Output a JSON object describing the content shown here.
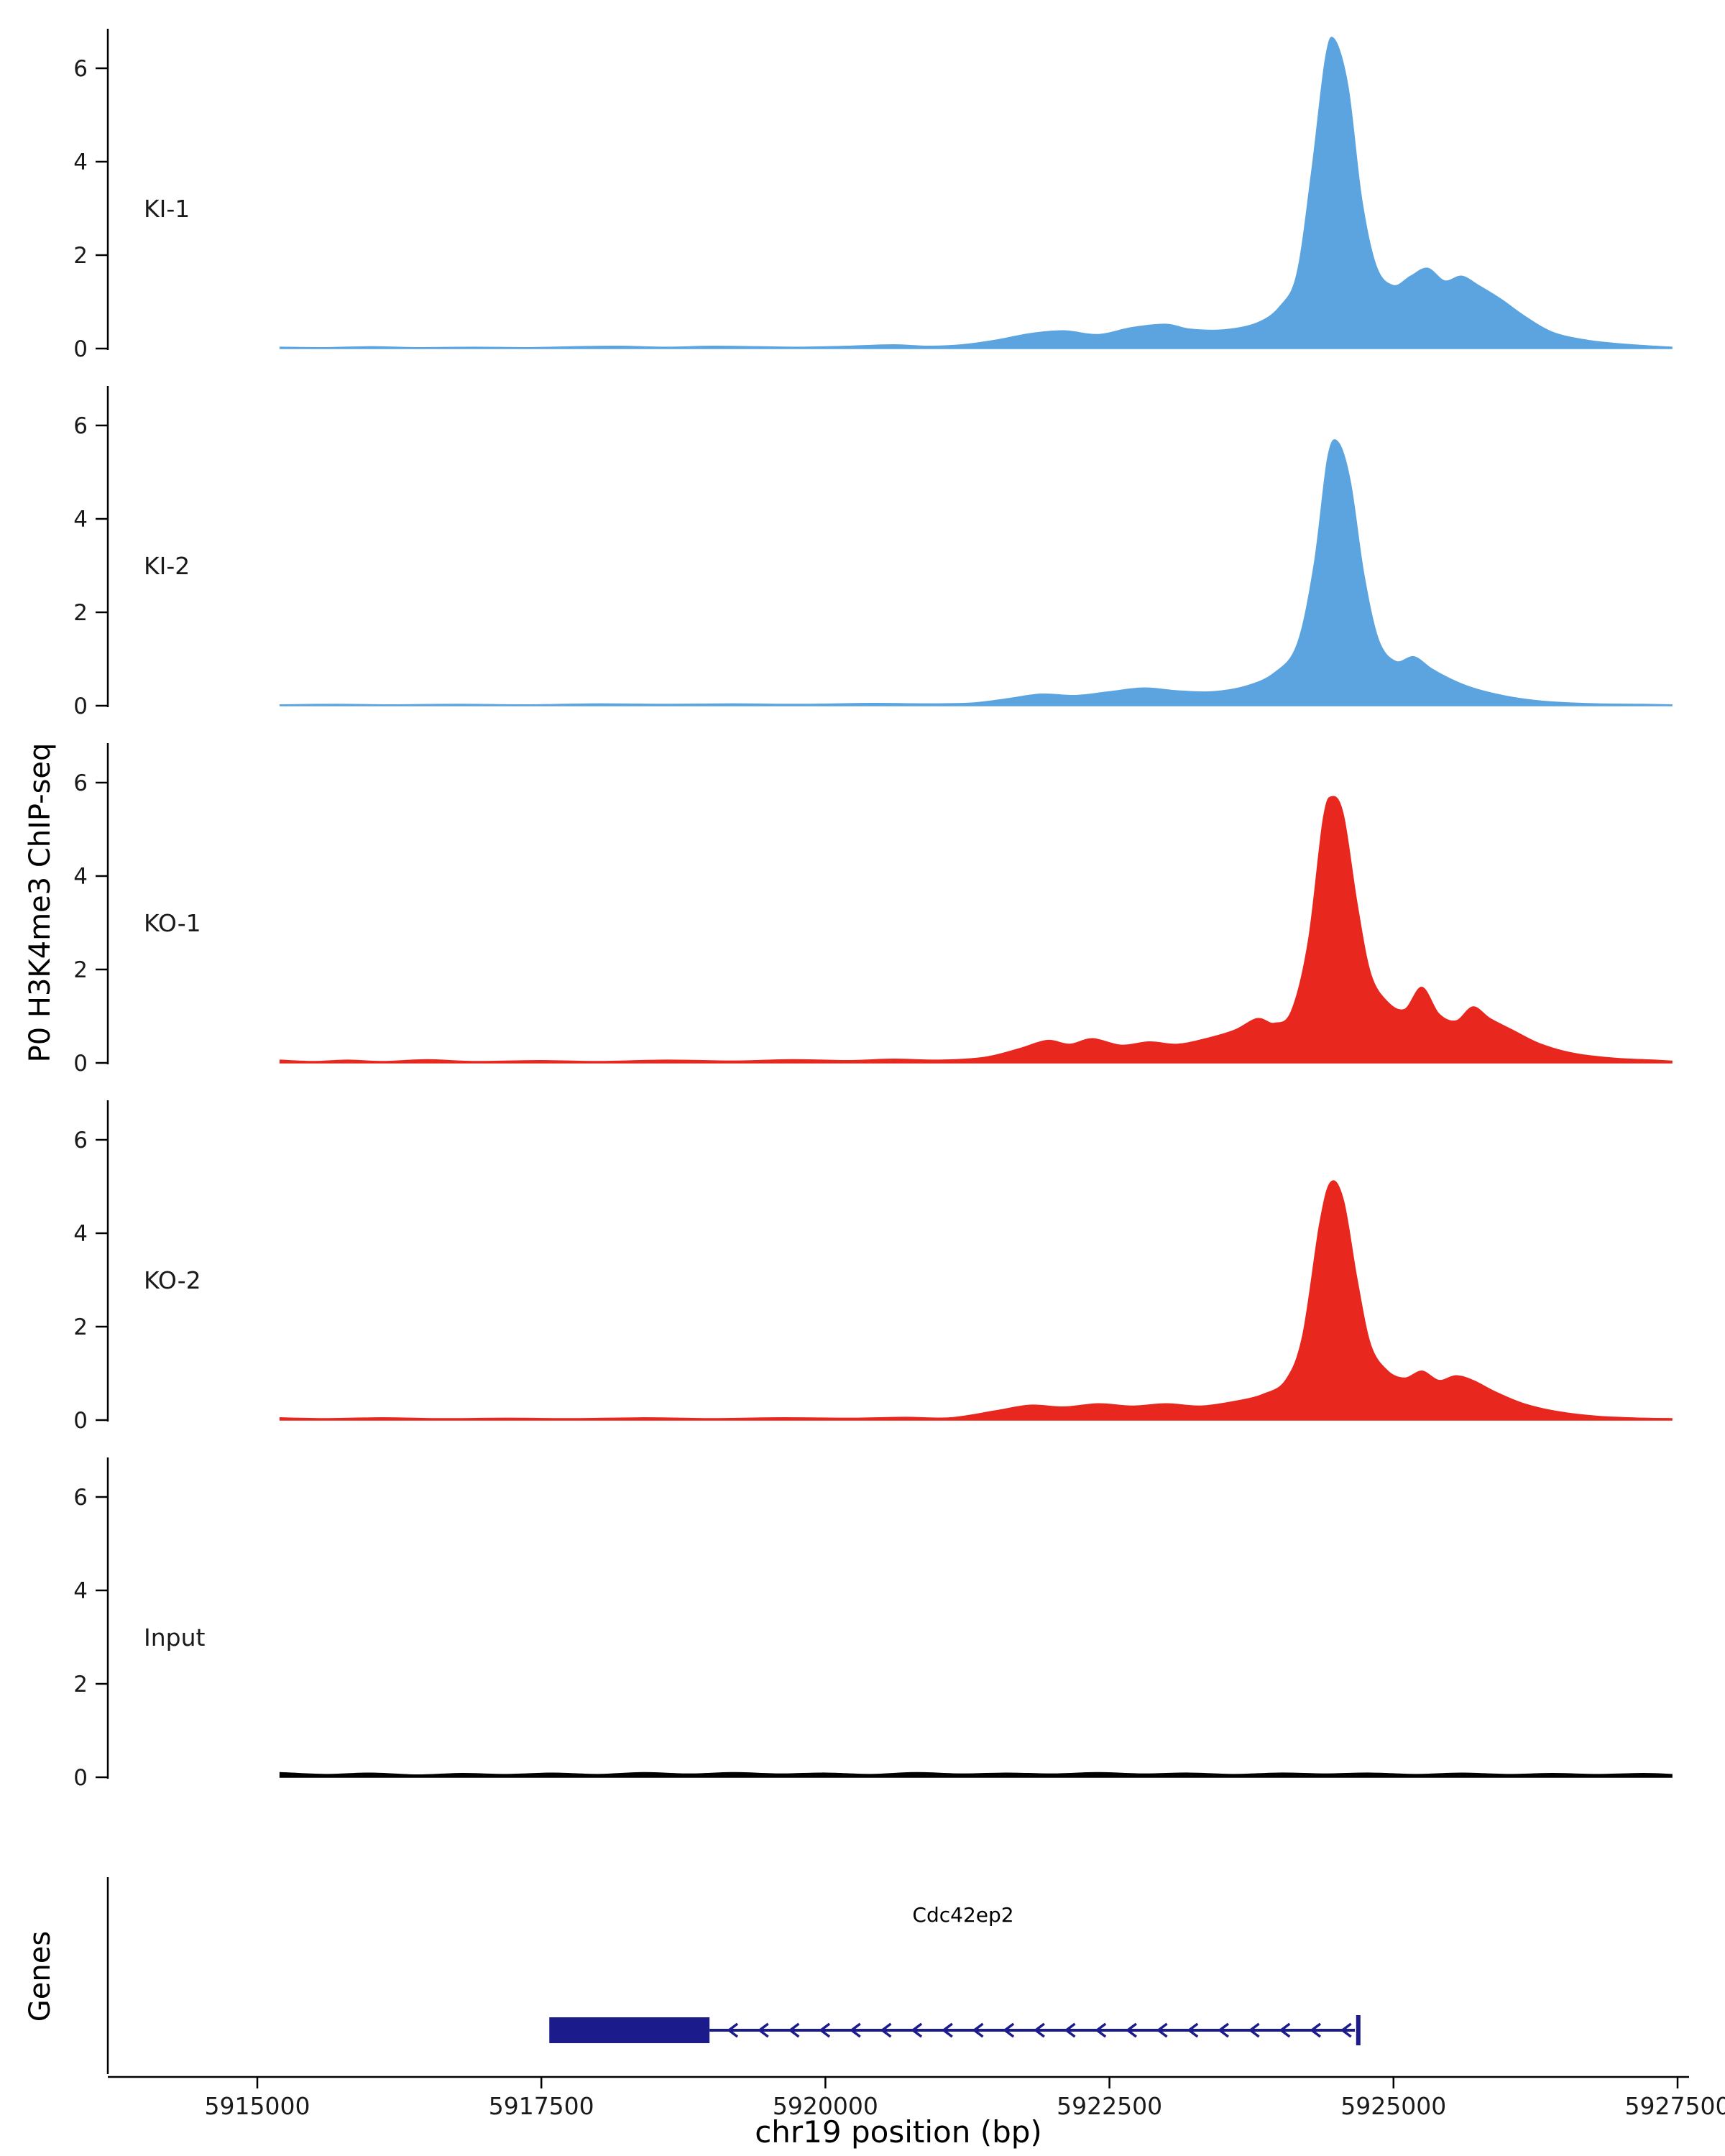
{
  "figure": {
    "y_axis_label": "P0 H3K4me3 ChIP-seq",
    "x_axis_label": "chr19 position (bp)",
    "genes_label": "Genes"
  },
  "chart_data": {
    "type": "area",
    "title": "",
    "x_unit": "bp",
    "chromosome": "chr19",
    "xlim": [
      5913650,
      5928100
    ],
    "x_ticks": [
      5915000,
      5917500,
      5920000,
      5922500,
      5925000,
      5927500
    ],
    "y_ticks": [
      0,
      2,
      4,
      6
    ],
    "ylim": [
      0,
      6.8
    ],
    "grid": "off",
    "tracks": [
      {
        "name": "KI-1",
        "color": "#5BA4E0",
        "points": [
          [
            5915200,
            0.03
          ],
          [
            5915600,
            0.02
          ],
          [
            5916000,
            0.04
          ],
          [
            5916400,
            0.02
          ],
          [
            5916900,
            0.03
          ],
          [
            5917400,
            0.02
          ],
          [
            5917800,
            0.04
          ],
          [
            5918200,
            0.05
          ],
          [
            5918600,
            0.03
          ],
          [
            5919000,
            0.05
          ],
          [
            5919400,
            0.04
          ],
          [
            5919800,
            0.03
          ],
          [
            5920200,
            0.05
          ],
          [
            5920600,
            0.08
          ],
          [
            5920900,
            0.05
          ],
          [
            5921200,
            0.08
          ],
          [
            5921500,
            0.18
          ],
          [
            5921800,
            0.32
          ],
          [
            5922100,
            0.38
          ],
          [
            5922400,
            0.3
          ],
          [
            5922700,
            0.45
          ],
          [
            5923000,
            0.52
          ],
          [
            5923200,
            0.42
          ],
          [
            5923500,
            0.4
          ],
          [
            5923800,
            0.55
          ],
          [
            5924000,
            0.9
          ],
          [
            5924150,
            1.6
          ],
          [
            5924280,
            3.8
          ],
          [
            5924400,
            6.2
          ],
          [
            5924480,
            6.62
          ],
          [
            5924600,
            5.6
          ],
          [
            5924720,
            3.2
          ],
          [
            5924850,
            1.75
          ],
          [
            5925000,
            1.35
          ],
          [
            5925150,
            1.55
          ],
          [
            5925300,
            1.72
          ],
          [
            5925450,
            1.45
          ],
          [
            5925600,
            1.55
          ],
          [
            5925750,
            1.35
          ],
          [
            5925950,
            1.05
          ],
          [
            5926150,
            0.7
          ],
          [
            5926400,
            0.35
          ],
          [
            5926700,
            0.18
          ],
          [
            5927000,
            0.1
          ],
          [
            5927300,
            0.05
          ],
          [
            5927450,
            0.03
          ]
        ]
      },
      {
        "name": "KI-2",
        "color": "#5BA4E0",
        "points": [
          [
            5915200,
            0.02
          ],
          [
            5915700,
            0.03
          ],
          [
            5916200,
            0.02
          ],
          [
            5916800,
            0.03
          ],
          [
            5917400,
            0.02
          ],
          [
            5918000,
            0.04
          ],
          [
            5918600,
            0.03
          ],
          [
            5919200,
            0.04
          ],
          [
            5919800,
            0.03
          ],
          [
            5920400,
            0.05
          ],
          [
            5920900,
            0.04
          ],
          [
            5921300,
            0.06
          ],
          [
            5921600,
            0.15
          ],
          [
            5921900,
            0.25
          ],
          [
            5922200,
            0.22
          ],
          [
            5922500,
            0.3
          ],
          [
            5922800,
            0.38
          ],
          [
            5923100,
            0.32
          ],
          [
            5923400,
            0.3
          ],
          [
            5923700,
            0.42
          ],
          [
            5923950,
            0.7
          ],
          [
            5924150,
            1.3
          ],
          [
            5924300,
            3.0
          ],
          [
            5924420,
            5.3
          ],
          [
            5924510,
            5.65
          ],
          [
            5924620,
            4.8
          ],
          [
            5924740,
            2.8
          ],
          [
            5924870,
            1.4
          ],
          [
            5925020,
            0.95
          ],
          [
            5925180,
            1.05
          ],
          [
            5925330,
            0.8
          ],
          [
            5925480,
            0.6
          ],
          [
            5925650,
            0.42
          ],
          [
            5925850,
            0.28
          ],
          [
            5926100,
            0.16
          ],
          [
            5926400,
            0.08
          ],
          [
            5926800,
            0.04
          ],
          [
            5927200,
            0.03
          ],
          [
            5927450,
            0.02
          ]
        ]
      },
      {
        "name": "KO-1",
        "color": "#E8271E",
        "points": [
          [
            5915200,
            0.06
          ],
          [
            5915500,
            0.03
          ],
          [
            5915800,
            0.06
          ],
          [
            5916100,
            0.03
          ],
          [
            5916500,
            0.07
          ],
          [
            5916900,
            0.03
          ],
          [
            5917500,
            0.05
          ],
          [
            5918000,
            0.03
          ],
          [
            5918600,
            0.06
          ],
          [
            5919200,
            0.04
          ],
          [
            5919700,
            0.07
          ],
          [
            5920200,
            0.05
          ],
          [
            5920600,
            0.08
          ],
          [
            5921000,
            0.06
          ],
          [
            5921400,
            0.12
          ],
          [
            5921700,
            0.3
          ],
          [
            5921950,
            0.48
          ],
          [
            5922150,
            0.4
          ],
          [
            5922350,
            0.52
          ],
          [
            5922600,
            0.38
          ],
          [
            5922850,
            0.45
          ],
          [
            5923100,
            0.4
          ],
          [
            5923350,
            0.52
          ],
          [
            5923600,
            0.7
          ],
          [
            5923800,
            0.95
          ],
          [
            5923950,
            0.85
          ],
          [
            5924100,
            1.1
          ],
          [
            5924250,
            2.6
          ],
          [
            5924380,
            5.2
          ],
          [
            5924460,
            5.7
          ],
          [
            5924560,
            5.3
          ],
          [
            5924680,
            3.4
          ],
          [
            5924800,
            1.9
          ],
          [
            5924950,
            1.3
          ],
          [
            5925100,
            1.15
          ],
          [
            5925250,
            1.62
          ],
          [
            5925400,
            1.05
          ],
          [
            5925550,
            0.9
          ],
          [
            5925700,
            1.2
          ],
          [
            5925850,
            0.95
          ],
          [
            5926050,
            0.7
          ],
          [
            5926300,
            0.4
          ],
          [
            5926600,
            0.2
          ],
          [
            5926950,
            0.1
          ],
          [
            5927300,
            0.06
          ],
          [
            5927450,
            0.04
          ]
        ]
      },
      {
        "name": "KO-2",
        "color": "#E8271E",
        "points": [
          [
            5915200,
            0.05
          ],
          [
            5915600,
            0.03
          ],
          [
            5916100,
            0.05
          ],
          [
            5916600,
            0.03
          ],
          [
            5917200,
            0.04
          ],
          [
            5917800,
            0.03
          ],
          [
            5918400,
            0.05
          ],
          [
            5919000,
            0.03
          ],
          [
            5919600,
            0.05
          ],
          [
            5920200,
            0.04
          ],
          [
            5920700,
            0.06
          ],
          [
            5921100,
            0.05
          ],
          [
            5921500,
            0.2
          ],
          [
            5921800,
            0.32
          ],
          [
            5922100,
            0.28
          ],
          [
            5922400,
            0.35
          ],
          [
            5922700,
            0.3
          ],
          [
            5923000,
            0.35
          ],
          [
            5923300,
            0.3
          ],
          [
            5923600,
            0.4
          ],
          [
            5923850,
            0.55
          ],
          [
            5924050,
            0.85
          ],
          [
            5924200,
            1.8
          ],
          [
            5924350,
            4.2
          ],
          [
            5924450,
            5.1
          ],
          [
            5924560,
            4.7
          ],
          [
            5924680,
            3.0
          ],
          [
            5924800,
            1.6
          ],
          [
            5924950,
            1.05
          ],
          [
            5925100,
            0.9
          ],
          [
            5925250,
            1.05
          ],
          [
            5925400,
            0.85
          ],
          [
            5925550,
            0.95
          ],
          [
            5925700,
            0.85
          ],
          [
            5925900,
            0.6
          ],
          [
            5926150,
            0.35
          ],
          [
            5926450,
            0.18
          ],
          [
            5926800,
            0.08
          ],
          [
            5927200,
            0.04
          ],
          [
            5927450,
            0.03
          ]
        ]
      },
      {
        "name": "Input",
        "color": "#000000",
        "points": [
          [
            5915200,
            0.1
          ],
          [
            5915600,
            0.06
          ],
          [
            5916000,
            0.09
          ],
          [
            5916400,
            0.05
          ],
          [
            5916800,
            0.08
          ],
          [
            5917200,
            0.06
          ],
          [
            5917600,
            0.09
          ],
          [
            5918000,
            0.06
          ],
          [
            5918400,
            0.1
          ],
          [
            5918800,
            0.07
          ],
          [
            5919200,
            0.1
          ],
          [
            5919600,
            0.07
          ],
          [
            5920000,
            0.09
          ],
          [
            5920400,
            0.06
          ],
          [
            5920800,
            0.1
          ],
          [
            5921200,
            0.07
          ],
          [
            5921600,
            0.09
          ],
          [
            5922000,
            0.07
          ],
          [
            5922400,
            0.1
          ],
          [
            5922800,
            0.07
          ],
          [
            5923200,
            0.09
          ],
          [
            5923600,
            0.06
          ],
          [
            5924000,
            0.09
          ],
          [
            5924400,
            0.07
          ],
          [
            5924800,
            0.09
          ],
          [
            5925200,
            0.06
          ],
          [
            5925600,
            0.09
          ],
          [
            5926000,
            0.06
          ],
          [
            5926400,
            0.08
          ],
          [
            5926800,
            0.06
          ],
          [
            5927200,
            0.08
          ],
          [
            5927450,
            0.06
          ]
        ]
      }
    ],
    "gene_track": {
      "label": "Cdc42ep2",
      "color": "#1B1B8C",
      "strand": "-",
      "exon_box": [
        5917570,
        5918980
      ],
      "intron_line": [
        5918980,
        5924660
      ],
      "terminal_bar": 5924690,
      "arrow_start": 5919150,
      "arrow_end": 5924560,
      "arrow_step": 270
    }
  }
}
